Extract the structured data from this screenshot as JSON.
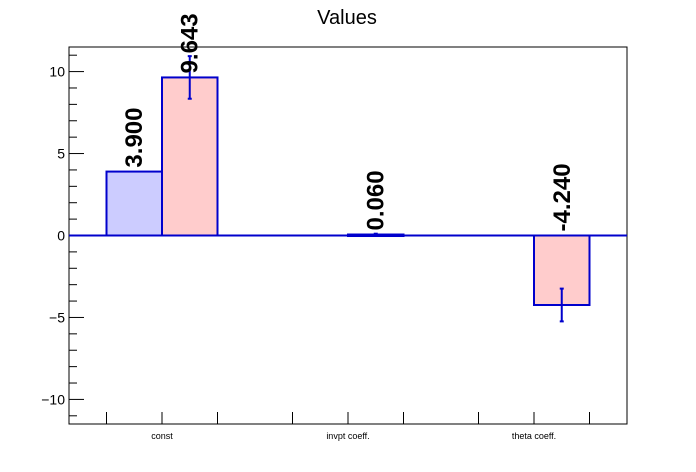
{
  "chart_data": {
    "type": "bar",
    "title": "Values",
    "categories": [
      "const",
      "invpt coeff.",
      "theta coeff."
    ],
    "ylim": [
      -11.5,
      11.5
    ],
    "yticks": [
      -10,
      -5,
      0,
      5,
      10
    ],
    "ytick_labels": [
      "−10",
      "−5",
      "0",
      "5",
      "10"
    ],
    "grid": false,
    "legend": "none",
    "series": [
      {
        "fill": "#ccccff",
        "stroke": "#0000cc",
        "values": [
          3.9,
          null,
          null
        ],
        "labels": [
          "3.900",
          null,
          null
        ],
        "errors": [
          null,
          null,
          null
        ]
      },
      {
        "fill": "#ffcccc",
        "stroke": "#0000cc",
        "values": [
          9.643,
          0.06,
          -4.24
        ],
        "labels": [
          "9.643",
          "0.060",
          "-4.240"
        ],
        "errors": [
          1.3,
          0.05,
          1.0
        ]
      }
    ]
  }
}
